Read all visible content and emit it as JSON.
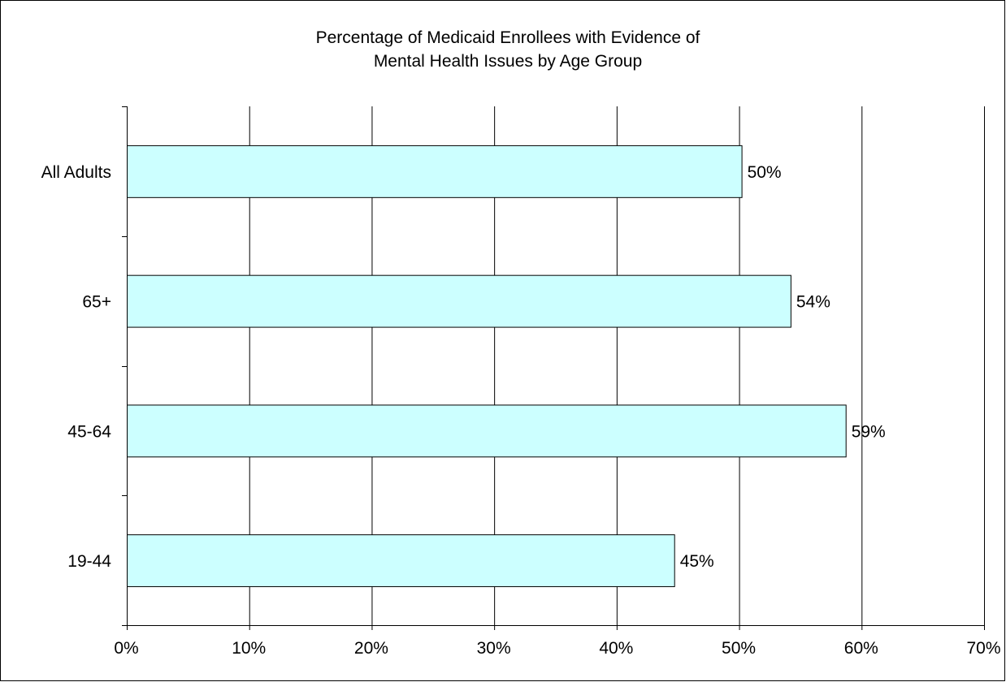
{
  "chart_data": {
    "type": "bar",
    "orientation": "horizontal",
    "title": [
      "Percentage of Medicaid Enrollees with Evidence of",
      "Mental Health Issues by Age Group"
    ],
    "categories": [
      "All Adults",
      "65+",
      "45-64",
      "19-44"
    ],
    "values": [
      50.2,
      54.2,
      58.7,
      44.7
    ],
    "value_labels": [
      "50%",
      "54%",
      "59%",
      "45%"
    ],
    "x_ticks": [
      0,
      10,
      20,
      30,
      40,
      50,
      60,
      70
    ],
    "x_tick_labels": [
      "0%",
      "10%",
      "20%",
      "30%",
      "40%",
      "50%",
      "60%",
      "70%"
    ],
    "xlim": [
      0,
      70
    ],
    "xlabel": "",
    "ylabel": "",
    "grid": "vertical",
    "legend": "none",
    "bar_fill": "#ccffff",
    "bar_stroke": "#000000"
  }
}
